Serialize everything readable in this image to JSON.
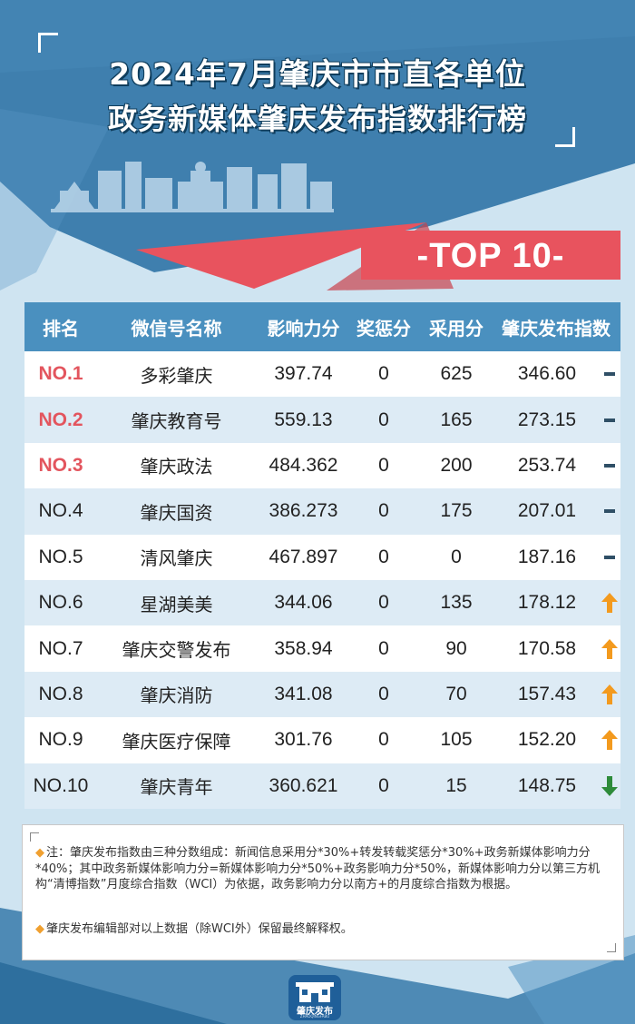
{
  "header": {
    "title_line1": "2024年7月肇庆市市直各单位",
    "title_line2": "政务新媒体肇庆发布指数排行榜",
    "badge": "-TOP 10-"
  },
  "table": {
    "columns": [
      "排名",
      "微信号名称",
      "影响力分",
      "奖惩分",
      "采用分",
      "肇庆发布指数"
    ],
    "rows": [
      {
        "rank": "NO.1",
        "name": "多彩肇庆",
        "influence": "397.74",
        "bonus": "0",
        "adopt": "625",
        "index": "346.60",
        "trend": "flat"
      },
      {
        "rank": "NO.2",
        "name": "肇庆教育号",
        "influence": "559.13",
        "bonus": "0",
        "adopt": "165",
        "index": "273.15",
        "trend": "flat"
      },
      {
        "rank": "NO.3",
        "name": "肇庆政法",
        "influence": "484.362",
        "bonus": "0",
        "adopt": "200",
        "index": "253.74",
        "trend": "flat"
      },
      {
        "rank": "NO.4",
        "name": "肇庆国资",
        "influence": "386.273",
        "bonus": "0",
        "adopt": "175",
        "index": "207.01",
        "trend": "flat"
      },
      {
        "rank": "NO.5",
        "name": "清风肇庆",
        "influence": "467.897",
        "bonus": "0",
        "adopt": "0",
        "index": "187.16",
        "trend": "flat"
      },
      {
        "rank": "NO.6",
        "name": "星湖美美",
        "influence": "344.06",
        "bonus": "0",
        "adopt": "135",
        "index": "178.12",
        "trend": "up"
      },
      {
        "rank": "NO.7",
        "name": "肇庆交警发布",
        "influence": "358.94",
        "bonus": "0",
        "adopt": "90",
        "index": "170.58",
        "trend": "up"
      },
      {
        "rank": "NO.8",
        "name": "肇庆消防",
        "influence": "341.08",
        "bonus": "0",
        "adopt": "70",
        "index": "157.43",
        "trend": "up"
      },
      {
        "rank": "NO.9",
        "name": "肇庆医疗保障",
        "influence": "301.76",
        "bonus": "0",
        "adopt": "105",
        "index": "152.20",
        "trend": "up"
      },
      {
        "rank": "NO.10",
        "name": "肇庆青年",
        "influence": "360.621",
        "bonus": "0",
        "adopt": "15",
        "index": "148.75",
        "trend": "down"
      }
    ]
  },
  "notes": {
    "note1": "注：肇庆发布指数由三种分数组成：新闻信息采用分*30%+转发转载奖惩分*30%+政务新媒体影响力分*40%；其中政务新媒体影响力分=新媒体影响力分*50%+政务影响力分*50%，新媒体影响力分以第三方机构“清博指数”月度综合指数（WCI）为依据，政务影响力分以南方+的月度综合指数为根据。",
    "note2": "肇庆发布编辑部对以上数据（除WCI外）保留最终解释权。"
  },
  "logo": {
    "text": "肇庆发布",
    "sub": "ZHAOQINGFABU"
  },
  "colors": {
    "header_blue": "#3f7fae",
    "table_header": "#4a90bf",
    "accent_red": "#e8535e",
    "arrow_up": "#f39a1e",
    "arrow_down": "#2e8b3a",
    "background": "#cfe4f1"
  },
  "icons": {
    "flat": "dash-icon",
    "up": "arrow-up-icon",
    "down": "arrow-down-icon"
  }
}
